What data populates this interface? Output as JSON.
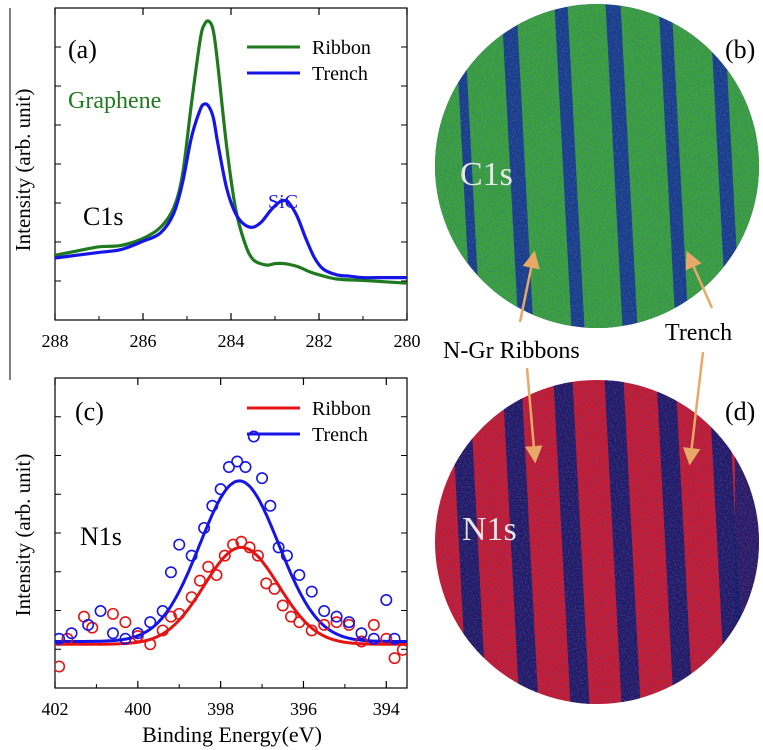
{
  "colors": {
    "ribbon_green": "#1f7a1f",
    "trench_blue": "#1515e6",
    "ribbon_red": "#e51414",
    "arrow_orange": "#e8a868",
    "c1s_map_green": "#3fae2e",
    "c1s_map_dark": "#0d2a6e",
    "n1s_map_red": "#d11a2a",
    "n1s_map_dark": "#101a68"
  },
  "panels": {
    "a": {
      "tag": "(a)",
      "core_level": "C1s",
      "peak_graphene": "Graphene",
      "peak_sic": "SiC",
      "ylabel": "Intensity (arb. unit)"
    },
    "b": {
      "tag": "(b)",
      "map_label": "C1s"
    },
    "c": {
      "tag": "(c)",
      "core_level": "N1s",
      "ylabel": "Intensity (arb. unit)",
      "xlabel": "Binding Energy(eV)"
    },
    "d": {
      "tag": "(d)",
      "map_label": "N1s"
    }
  },
  "annotations": {
    "ribbons": "N-Gr Ribbons",
    "trench": "Trench"
  },
  "chart_data": [
    {
      "id": "a",
      "type": "line",
      "ylabel": "Intensity (arb. unit)",
      "xlim": [
        288,
        280
      ],
      "ylim": [
        0,
        1
      ],
      "x_ticks": [
        288,
        286,
        284,
        282,
        280
      ],
      "legend_position": "top-right",
      "series": [
        {
          "name": "Ribbon",
          "color": "#1f7a1f",
          "x": [
            288.0,
            287.5,
            287.0,
            286.5,
            286.0,
            285.6,
            285.3,
            285.1,
            284.9,
            284.7,
            284.6,
            284.5,
            284.4,
            284.3,
            284.1,
            283.9,
            283.7,
            283.5,
            283.2,
            283.0,
            282.8,
            282.5,
            282.2,
            282.0,
            281.6,
            281.0,
            280.5,
            280.0
          ],
          "y": [
            0.16,
            0.175,
            0.19,
            0.195,
            0.22,
            0.26,
            0.33,
            0.45,
            0.7,
            0.93,
            0.985,
            0.995,
            0.96,
            0.84,
            0.55,
            0.33,
            0.21,
            0.145,
            0.125,
            0.13,
            0.13,
            0.12,
            0.1,
            0.09,
            0.075,
            0.07,
            0.065,
            0.06
          ]
        },
        {
          "name": "Trench",
          "color": "#1515e6",
          "x": [
            288.0,
            287.5,
            287.0,
            286.5,
            286.0,
            285.6,
            285.3,
            285.1,
            284.9,
            284.7,
            284.6,
            284.5,
            284.4,
            284.3,
            284.1,
            283.9,
            283.7,
            283.5,
            283.3,
            283.1,
            282.9,
            282.8,
            282.7,
            282.5,
            282.3,
            282.1,
            281.9,
            281.6,
            281.3,
            281.0,
            280.5,
            280.0
          ],
          "y": [
            0.15,
            0.16,
            0.17,
            0.18,
            0.21,
            0.24,
            0.31,
            0.42,
            0.58,
            0.68,
            0.7,
            0.69,
            0.65,
            0.56,
            0.4,
            0.31,
            0.27,
            0.26,
            0.28,
            0.32,
            0.35,
            0.355,
            0.35,
            0.3,
            0.22,
            0.15,
            0.11,
            0.09,
            0.085,
            0.08,
            0.08,
            0.08
          ]
        }
      ]
    },
    {
      "id": "c",
      "type": "scatter",
      "ylabel": "Intensity (arb. unit)",
      "xlabel": "Binding Energy(eV)",
      "xlim": [
        402,
        393.5
      ],
      "ylim": [
        0,
        1
      ],
      "x_ticks": [
        402,
        400,
        398,
        396,
        394
      ],
      "legend_position": "top-right",
      "series": [
        {
          "name": "Ribbon",
          "color": "#e51414",
          "fit": {
            "center": 397.5,
            "width": 0.9,
            "amplitude": 0.35,
            "baseline": 0.1
          },
          "x": [
            401.9,
            401.7,
            401.3,
            401.1,
            400.6,
            400.3,
            400.0,
            399.7,
            399.4,
            399.2,
            399.0,
            398.7,
            398.5,
            398.3,
            398.1,
            397.9,
            397.7,
            397.5,
            397.3,
            397.1,
            396.9,
            396.7,
            396.5,
            396.3,
            396.1,
            395.8,
            395.5,
            395.2,
            394.9,
            394.6,
            394.3,
            394.0,
            393.8,
            393.6
          ],
          "y": [
            0.02,
            0.12,
            0.2,
            0.16,
            0.21,
            0.18,
            0.13,
            0.1,
            0.15,
            0.2,
            0.21,
            0.27,
            0.33,
            0.38,
            0.35,
            0.42,
            0.46,
            0.47,
            0.45,
            0.42,
            0.32,
            0.3,
            0.24,
            0.2,
            0.18,
            0.15,
            0.17,
            0.18,
            0.17,
            0.11,
            0.17,
            0.12,
            0.05,
            0.08
          ]
        },
        {
          "name": "Trench",
          "color": "#1515e6",
          "fit": {
            "center": 397.55,
            "width": 0.95,
            "amplitude": 0.58,
            "baseline": 0.11
          },
          "x": [
            401.9,
            401.6,
            401.2,
            400.9,
            400.6,
            400.3,
            400.0,
            399.7,
            399.4,
            399.2,
            399.0,
            398.7,
            398.4,
            398.2,
            398.0,
            397.8,
            397.6,
            397.4,
            397.2,
            397.0,
            396.8,
            396.6,
            396.4,
            396.1,
            395.8,
            395.5,
            395.2,
            394.9,
            394.6,
            394.3,
            394.0,
            393.8
          ],
          "y": [
            0.12,
            0.14,
            0.17,
            0.22,
            0.14,
            0.12,
            0.14,
            0.18,
            0.22,
            0.36,
            0.46,
            0.42,
            0.52,
            0.6,
            0.66,
            0.74,
            0.76,
            0.74,
            0.85,
            0.7,
            0.6,
            0.45,
            0.42,
            0.35,
            0.29,
            0.22,
            0.2,
            0.18,
            0.14,
            0.12,
            0.26,
            0.12
          ]
        }
      ]
    }
  ]
}
